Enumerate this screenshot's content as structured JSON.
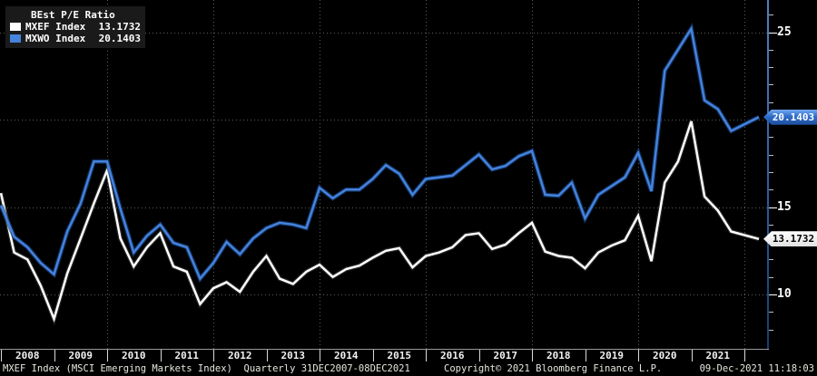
{
  "footer": {
    "left": "MXEF Index (MSCI Emerging Markets Index)  Quarterly 31DEC2007-08DEC2021",
    "copyright": "Copyright© 2021 Bloomberg Finance L.P.",
    "datetime": "09-Dec-2021 11:18:03"
  },
  "chart_data": {
    "type": "line",
    "title": "BEst P/E Ratio",
    "frequency": "Quarterly",
    "period": "31DEC2007-08DEC2021",
    "legend_position": "top-left",
    "grid": "dotted",
    "background": "#000000",
    "x_years": [
      "2008",
      "2009",
      "2010",
      "2011",
      "2012",
      "2013",
      "2014",
      "2015",
      "2016",
      "2017",
      "2018",
      "2019",
      "2020",
      "2021"
    ],
    "categories": [
      "2007Q4",
      "2008Q1",
      "2008Q2",
      "2008Q3",
      "2008Q4",
      "2009Q1",
      "2009Q2",
      "2009Q3",
      "2009Q4",
      "2010Q1",
      "2010Q2",
      "2010Q3",
      "2010Q4",
      "2011Q1",
      "2011Q2",
      "2011Q3",
      "2011Q4",
      "2012Q1",
      "2012Q2",
      "2012Q3",
      "2012Q4",
      "2013Q1",
      "2013Q2",
      "2013Q3",
      "2013Q4",
      "2014Q1",
      "2014Q2",
      "2014Q3",
      "2014Q4",
      "2015Q1",
      "2015Q2",
      "2015Q3",
      "2015Q4",
      "2016Q1",
      "2016Q2",
      "2016Q3",
      "2016Q4",
      "2017Q1",
      "2017Q2",
      "2017Q3",
      "2017Q4",
      "2018Q1",
      "2018Q2",
      "2018Q3",
      "2018Q4",
      "2019Q1",
      "2019Q2",
      "2019Q3",
      "2019Q4",
      "2020Q1",
      "2020Q2",
      "2020Q3",
      "2020Q4",
      "2021Q1",
      "2021Q2",
      "2021Q3",
      "2021Q4"
    ],
    "y_axis": {
      "side": "right",
      "tick_labels": [
        25,
        15,
        10
      ],
      "gridlines": [
        10,
        15,
        20,
        25
      ],
      "minor_tick_min": 8,
      "minor_tick_max": 26,
      "ylim": [
        7.5,
        26.8
      ]
    },
    "series": [
      {
        "name": "MXEF Index",
        "last_label": "13.1732",
        "color": "#ffffff",
        "values": [
          15.8,
          12.4,
          12.0,
          10.5,
          8.6,
          11.2,
          13.2,
          15.2,
          17.1,
          13.2,
          11.6,
          12.7,
          13.5,
          11.6,
          11.3,
          9.45,
          10.35,
          10.7,
          10.15,
          11.3,
          12.2,
          10.9,
          10.6,
          11.3,
          11.7,
          11.0,
          11.45,
          11.65,
          12.1,
          12.5,
          12.65,
          11.55,
          12.2,
          12.4,
          12.7,
          13.4,
          13.5,
          12.6,
          12.85,
          13.5,
          14.1,
          12.45,
          12.2,
          12.1,
          11.5,
          12.4,
          12.8,
          13.1,
          14.5,
          11.9,
          16.4,
          17.6,
          19.9,
          15.6,
          14.8,
          13.6,
          13.1732
        ]
      },
      {
        "name": "MXWO Index",
        "last_label": "20.1403",
        "color": "#4583dd",
        "values": [
          15.1,
          13.3,
          12.7,
          11.8,
          11.15,
          13.6,
          15.2,
          17.6,
          17.6,
          14.9,
          12.4,
          13.35,
          14.0,
          12.95,
          12.7,
          10.9,
          11.8,
          13.0,
          12.3,
          13.2,
          13.8,
          14.1,
          14.0,
          13.8,
          16.1,
          15.5,
          16.0,
          16.0,
          16.6,
          17.4,
          16.9,
          15.7,
          16.6,
          16.7,
          16.8,
          17.4,
          18.0,
          17.15,
          17.35,
          17.9,
          18.2,
          15.7,
          15.65,
          16.4,
          14.35,
          15.7,
          16.2,
          16.7,
          18.1,
          15.9,
          22.8,
          24.0,
          25.2,
          21.1,
          20.6,
          19.35,
          20.1403
        ]
      }
    ]
  }
}
